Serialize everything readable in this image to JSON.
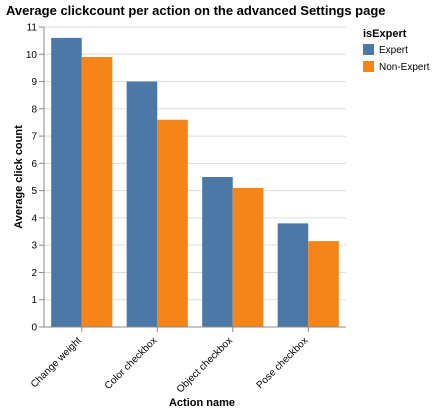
{
  "chart_data": {
    "type": "bar",
    "title": "Average clickcount per action on the advanced Settings page",
    "xlabel": "Action name",
    "ylabel": "Average click count",
    "categories": [
      "Change weight",
      "Color checkbox",
      "Object checkbox",
      "Pose checkbox"
    ],
    "series": [
      {
        "name": "Expert",
        "color": "#4c78a8",
        "values": [
          10.6,
          9.0,
          5.5,
          3.8
        ]
      },
      {
        "name": "Non-Expert",
        "color": "#f58518",
        "values": [
          9.9,
          7.6,
          5.1,
          3.15
        ]
      }
    ],
    "ylim": [
      0,
      11
    ],
    "yticks": [
      0,
      1,
      2,
      3,
      4,
      5,
      6,
      7,
      8,
      9,
      10,
      11
    ],
    "grid": true,
    "legend": {
      "title": "isExpert",
      "position": "right"
    }
  }
}
